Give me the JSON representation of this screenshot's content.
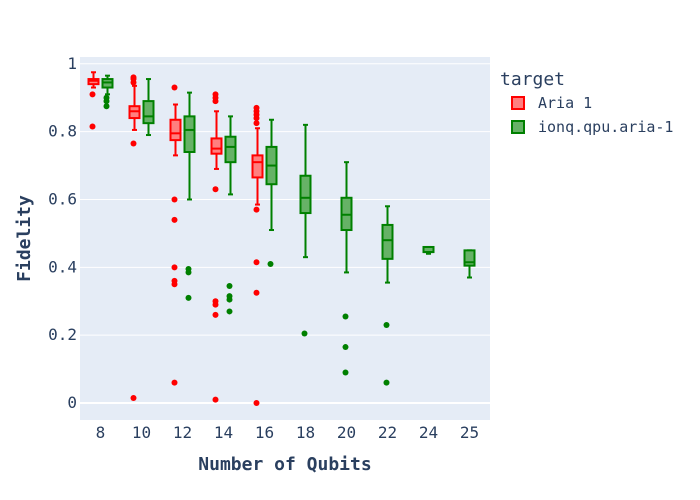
{
  "chart_data": {
    "type": "box",
    "xlabel": "Number of Qubits",
    "ylabel": "Fidelity",
    "categories": [
      "8",
      "10",
      "12",
      "14",
      "16",
      "18",
      "20",
      "22",
      "24",
      "25"
    ],
    "yticks": [
      0,
      0.2,
      0.4,
      0.6,
      0.8,
      1
    ],
    "ytick_labels": [
      "0",
      "0.2",
      "0.4",
      "0.6",
      "0.8",
      "1"
    ],
    "ylim": [
      -0.05,
      1.02
    ],
    "grid": true,
    "legend": {
      "title": "target",
      "placement": "top-right",
      "entries": [
        {
          "label": "Aria 1",
          "color": "#ff0000",
          "fill": "#ff7f7f"
        },
        {
          "label": "ionq.qpu.aria-1",
          "color": "#008000",
          "fill": "#66b266"
        }
      ]
    },
    "series": [
      {
        "name": "Aria 1",
        "color": "#ff0000",
        "fill": "#ff7f7f",
        "boxes": [
          {
            "x": "8",
            "min": 0.93,
            "q1": 0.94,
            "median": 0.95,
            "q3": 0.955,
            "max": 0.975,
            "outliers": [
              0.91,
              0.815
            ]
          },
          {
            "x": "10",
            "min": 0.805,
            "q1": 0.84,
            "median": 0.86,
            "q3": 0.875,
            "max": 0.935,
            "outliers": [
              0.955,
              0.945,
              0.96,
              0.765,
              0.015
            ]
          },
          {
            "x": "12",
            "min": 0.73,
            "q1": 0.775,
            "median": 0.795,
            "q3": 0.835,
            "max": 0.88,
            "outliers": [
              0.93,
              0.6,
              0.54,
              0.4,
              0.36,
              0.35,
              0.06
            ]
          },
          {
            "x": "14",
            "min": 0.69,
            "q1": 0.735,
            "median": 0.75,
            "q3": 0.78,
            "max": 0.86,
            "outliers": [
              0.91,
              0.9,
              0.89,
              0.63,
              0.3,
              0.29,
              0.26,
              0.01
            ]
          },
          {
            "x": "16",
            "min": 0.585,
            "q1": 0.665,
            "median": 0.71,
            "q3": 0.73,
            "max": 0.81,
            "outliers": [
              0.87,
              0.86,
              0.85,
              0.84,
              0.825,
              0.57,
              0.415,
              0.325,
              0.0
            ]
          }
        ]
      },
      {
        "name": "ionq.qpu.aria-1",
        "color": "#008000",
        "fill": "#66b266",
        "boxes": [
          {
            "x": "8",
            "min": 0.91,
            "q1": 0.93,
            "median": 0.945,
            "q3": 0.955,
            "max": 0.965,
            "outliers": [
              0.9,
              0.89,
              0.875
            ]
          },
          {
            "x": "10",
            "min": 0.79,
            "q1": 0.825,
            "median": 0.845,
            "q3": 0.89,
            "max": 0.955,
            "outliers": []
          },
          {
            "x": "12",
            "min": 0.6,
            "q1": 0.74,
            "median": 0.805,
            "q3": 0.845,
            "max": 0.915,
            "outliers": [
              0.395,
              0.385,
              0.31
            ]
          },
          {
            "x": "14",
            "min": 0.615,
            "q1": 0.71,
            "median": 0.755,
            "q3": 0.785,
            "max": 0.845,
            "outliers": [
              0.345,
              0.315,
              0.305,
              0.27
            ]
          },
          {
            "x": "16",
            "min": 0.51,
            "q1": 0.645,
            "median": 0.7,
            "q3": 0.755,
            "max": 0.835,
            "outliers": [
              0.41
            ]
          },
          {
            "x": "18",
            "min": 0.43,
            "q1": 0.56,
            "median": 0.605,
            "q3": 0.67,
            "max": 0.82,
            "outliers": [
              0.205
            ]
          },
          {
            "x": "20",
            "min": 0.385,
            "q1": 0.51,
            "median": 0.555,
            "q3": 0.605,
            "max": 0.71,
            "outliers": [
              0.255,
              0.165,
              0.09
            ]
          },
          {
            "x": "22",
            "min": 0.355,
            "q1": 0.425,
            "median": 0.48,
            "q3": 0.525,
            "max": 0.58,
            "outliers": [
              0.23,
              0.06
            ]
          },
          {
            "x": "24",
            "min": 0.44,
            "q1": 0.445,
            "median": 0.445,
            "q3": 0.46,
            "max": 0.46,
            "outliers": []
          },
          {
            "x": "25",
            "min": 0.37,
            "q1": 0.405,
            "median": 0.415,
            "q3": 0.45,
            "max": 0.45,
            "outliers": []
          }
        ]
      }
    ]
  }
}
